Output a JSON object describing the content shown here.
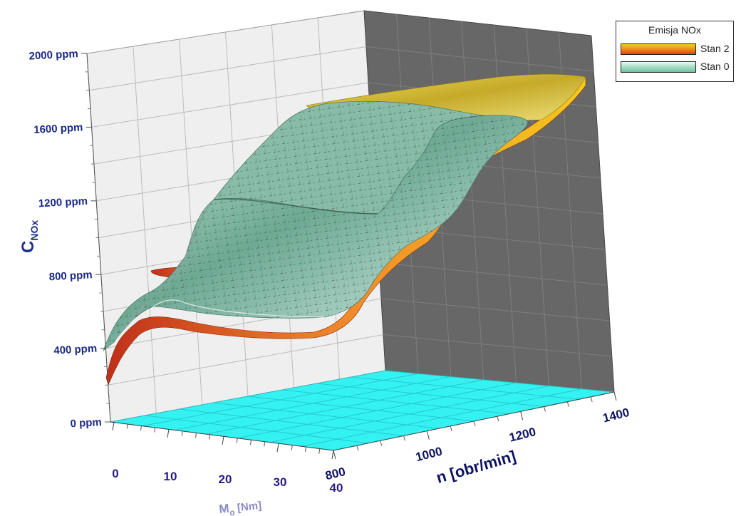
{
  "chart_data": {
    "type": "surface3d",
    "z_axis": {
      "label_main": "C",
      "label_sub": "NOx",
      "ticks": [
        "0 ppm",
        "400 ppm",
        "800 ppm",
        "1200 ppm",
        "1600 ppm",
        "2000 ppm"
      ],
      "range": [
        0,
        2000
      ]
    },
    "m_axis": {
      "label_main": "M",
      "label_sub": "o",
      "label_unit": " [Nm]",
      "ticks": [
        "0",
        "10",
        "20",
        "30",
        "40"
      ],
      "range": [
        0,
        40
      ]
    },
    "n_axis": {
      "label": "n [obr/min]",
      "ticks": [
        "800",
        "1000",
        "1200",
        "1400"
      ],
      "range": [
        800,
        1400
      ]
    },
    "legend": {
      "title": "Emisja NOx",
      "placement": "top-right",
      "items": [
        {
          "label": "Stan 2",
          "color_from": "#e2401a",
          "color_to": "#f3d21a"
        },
        {
          "label": "Stan 0",
          "color_from": "#6fc3a0",
          "color_to": "#e8fff6"
        }
      ]
    },
    "series": [
      {
        "name": "Stan 0",
        "surface_color": "#8fc8b0",
        "profile_n": [
          800,
          850,
          900,
          950,
          1000,
          1050,
          1100,
          1150,
          1200,
          1250,
          1300,
          1350,
          1400
        ],
        "profile_ppm": [
          400,
          640,
          760,
          990,
          1080,
          1140,
          1380,
          1420,
          1690,
          1720,
          1790,
          1840,
          1850
        ]
      },
      {
        "name": "Stan 2",
        "surface_color": "#e8741f",
        "profile_n": [
          800,
          850,
          900,
          950,
          1000,
          1050,
          1100,
          1150,
          1200,
          1250,
          1300,
          1350,
          1400
        ],
        "profile_ppm": [
          240,
          560,
          530,
          620,
          700,
          820,
          1080,
          1130,
          1560,
          1600,
          1700,
          1790,
          1830
        ]
      }
    ],
    "floor_color": "#35f2f2",
    "back_wall_color": "#f0f0f0",
    "side_wall_color": "#686868",
    "grid": true
  }
}
